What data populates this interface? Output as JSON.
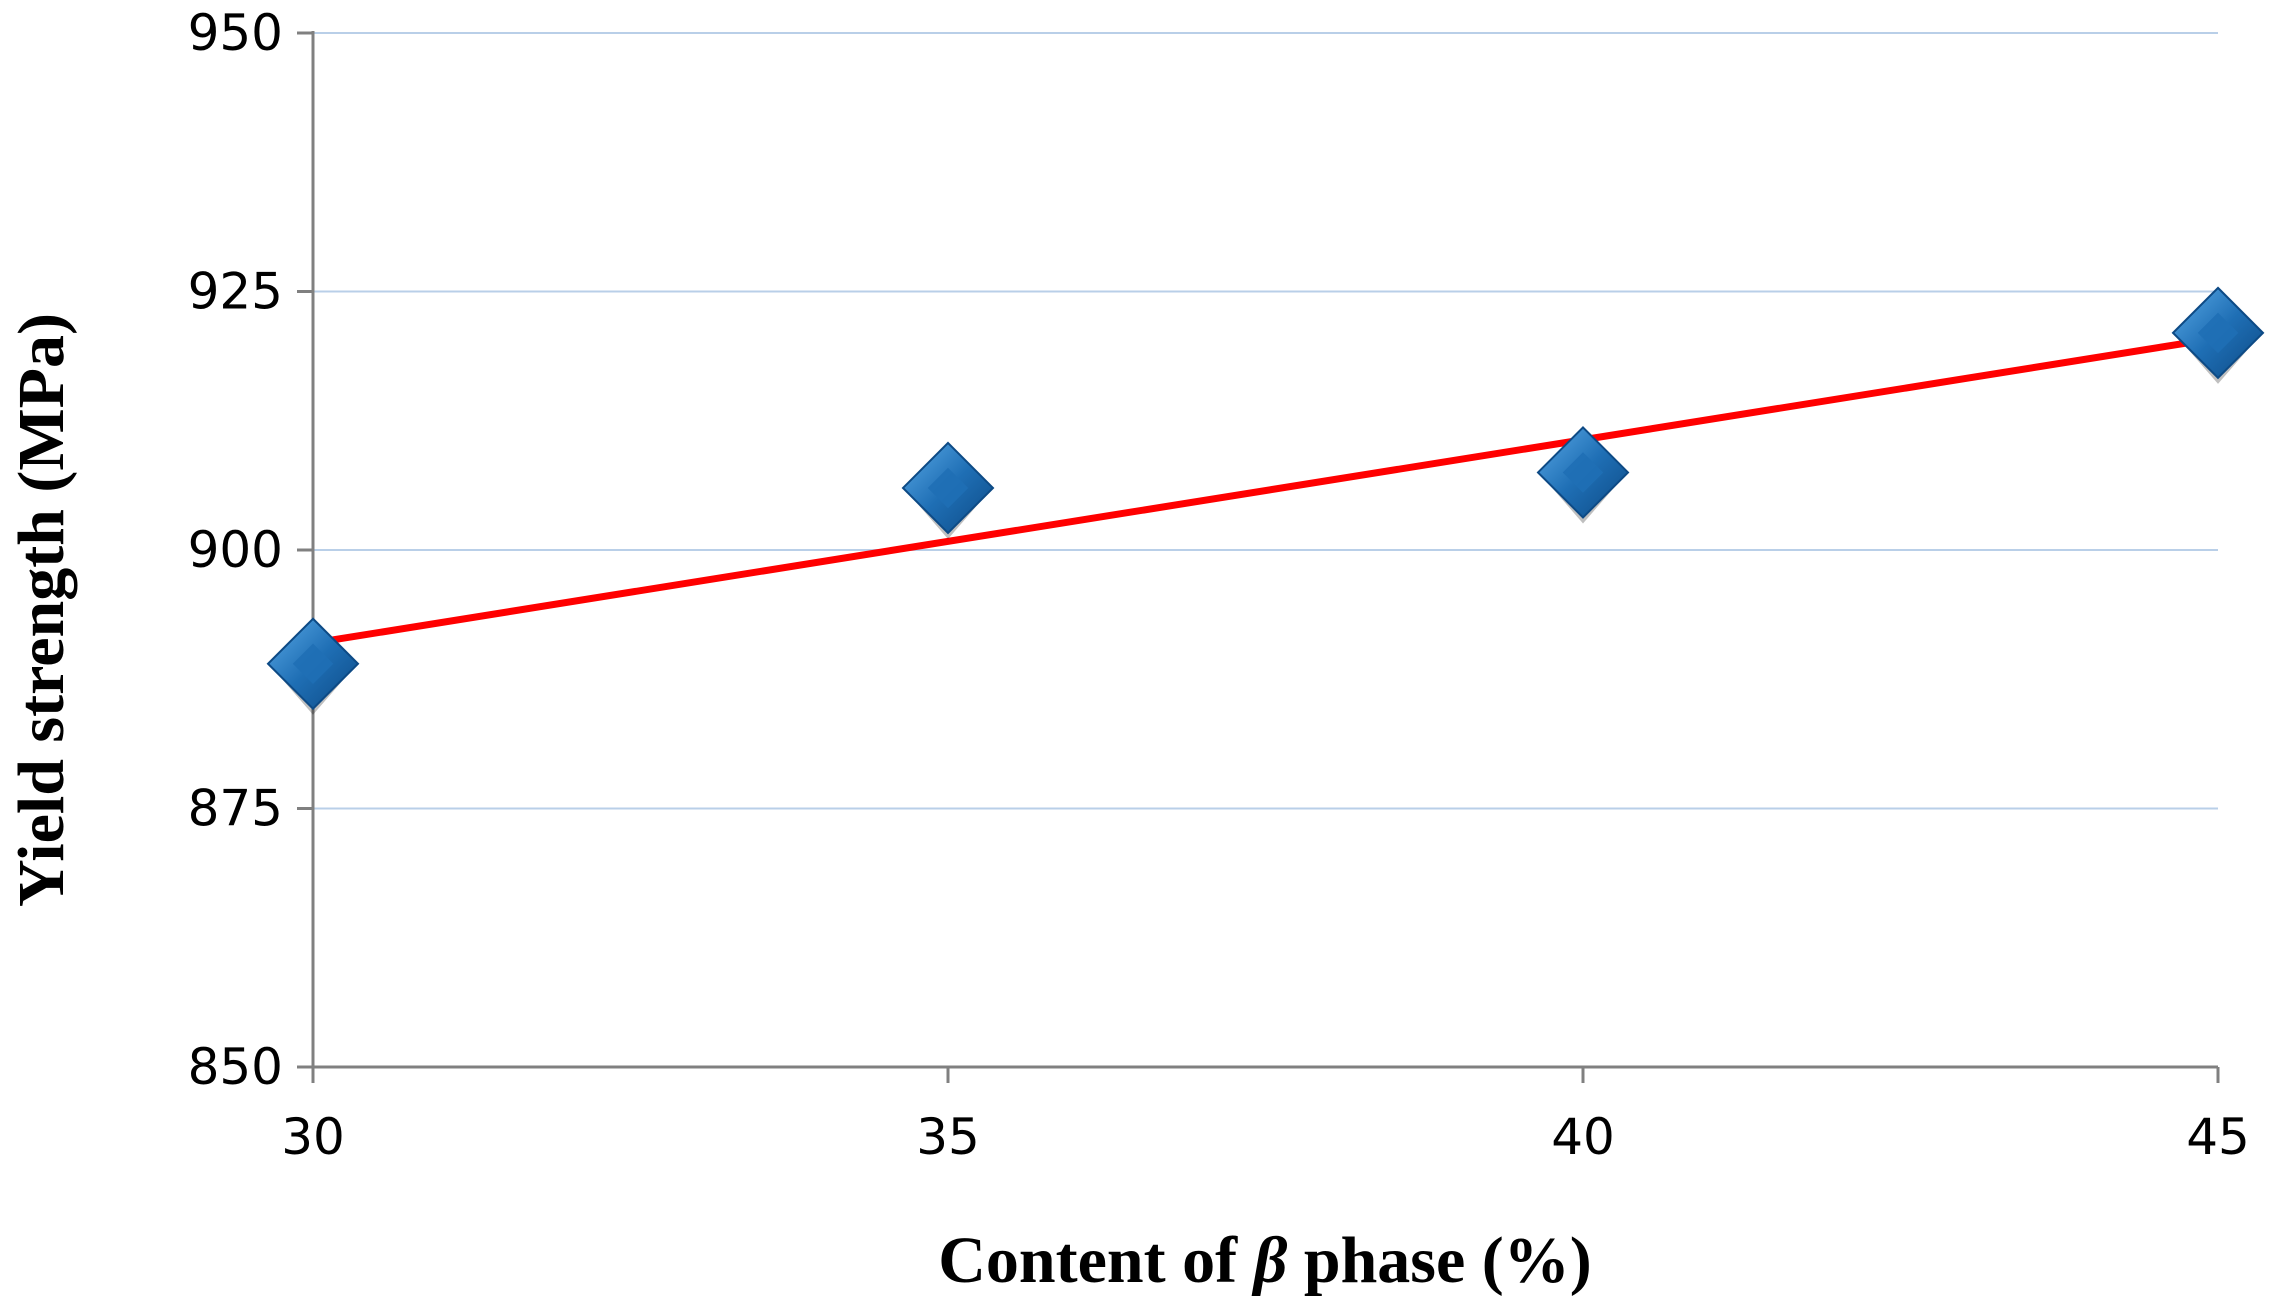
{
  "chart_data": {
    "type": "scatter",
    "title": "",
    "xlabel_parts": [
      "Content of ",
      "β",
      " phase (%)"
    ],
    "ylabel": "Yield strength (MPa)",
    "xlim": [
      30,
      45
    ],
    "ylim": [
      850,
      950
    ],
    "x_ticks": [
      "30",
      "35",
      "40",
      "45"
    ],
    "y_ticks": [
      "850",
      "875",
      "900",
      "925",
      "950"
    ],
    "grid": "horizontal",
    "points": [
      {
        "x": 30,
        "y": 889
      },
      {
        "x": 35,
        "y": 906
      },
      {
        "x": 40,
        "y": 907.5
      },
      {
        "x": 45,
        "y": 921
      }
    ],
    "trendline": {
      "x": [
        30,
        45
      ],
      "y": [
        891,
        920.5
      ]
    },
    "colors": {
      "marker": "#1f6fb5",
      "marker_light": "#5aa9e6",
      "marker_dark": "#0d4a85",
      "trendline": "#ff0000",
      "grid": "#b9cfe8",
      "axis": "#808080"
    }
  }
}
